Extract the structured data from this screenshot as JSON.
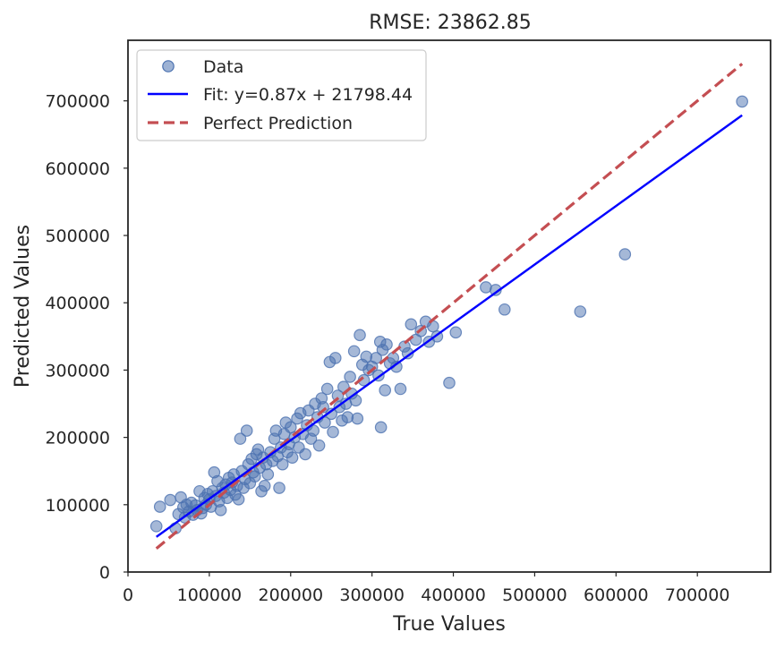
{
  "chart_data": {
    "type": "scatter",
    "title": "RMSE: 23862.85",
    "xlabel": "True Values",
    "ylabel": "Predicted Values",
    "xlim": [
      0,
      790000
    ],
    "ylim": [
      0,
      790000
    ],
    "x_ticks": [
      0,
      100000,
      200000,
      300000,
      400000,
      500000,
      600000,
      700000
    ],
    "y_ticks": [
      0,
      100000,
      200000,
      300000,
      400000,
      500000,
      600000,
      700000
    ],
    "x_tick_labels": [
      "0",
      "100000",
      "200000",
      "300000",
      "400000",
      "500000",
      "600000",
      "700000"
    ],
    "y_tick_labels": [
      "0",
      "100000",
      "200000",
      "300000",
      "400000",
      "500000",
      "600000",
      "700000"
    ],
    "grid": false,
    "legend_position": "top-left",
    "legend": [
      {
        "label": "Data",
        "kind": "marker",
        "color": "#4c72b0"
      },
      {
        "label": "Fit: y=0.87x + 21798.44",
        "kind": "line",
        "color": "#0000ff"
      },
      {
        "label": "Perfect Prediction",
        "kind": "dashed-line",
        "color": "#c44e52"
      }
    ],
    "fit": {
      "slope": 0.87,
      "intercept": 21798.44,
      "x_range": [
        34900,
        755000
      ],
      "color": "#0000ff"
    },
    "perfect_prediction": {
      "x_range": [
        34900,
        755000
      ],
      "color": "#c44e52"
    },
    "series": [
      {
        "name": "Data",
        "color": "#4c72b0",
        "points": [
          [
            34900,
            68000
          ],
          [
            39300,
            97000
          ],
          [
            52000,
            107000
          ],
          [
            58500,
            65000
          ],
          [
            62000,
            86000
          ],
          [
            65000,
            111000
          ],
          [
            68000,
            96000
          ],
          [
            70000,
            81000
          ],
          [
            72000,
            100000
          ],
          [
            75000,
            90000
          ],
          [
            78000,
            103000
          ],
          [
            80000,
            85000
          ],
          [
            83000,
            99000
          ],
          [
            85000,
            92000
          ],
          [
            88000,
            120000
          ],
          [
            90000,
            87000
          ],
          [
            92000,
            95000
          ],
          [
            94000,
            110000
          ],
          [
            96000,
            100000
          ],
          [
            98000,
            116000
          ],
          [
            100000,
            108000
          ],
          [
            102000,
            97000
          ],
          [
            104000,
            120000
          ],
          [
            106000,
            148000
          ],
          [
            108000,
            113000
          ],
          [
            110000,
            135000
          ],
          [
            112000,
            105000
          ],
          [
            114000,
            92000
          ],
          [
            116000,
            125000
          ],
          [
            118000,
            118000
          ],
          [
            120000,
            130000
          ],
          [
            122000,
            110000
          ],
          [
            124000,
            140000
          ],
          [
            126000,
            122000
          ],
          [
            128000,
            133000
          ],
          [
            130000,
            145000
          ],
          [
            132000,
            115000
          ],
          [
            134000,
            128000
          ],
          [
            136000,
            108000
          ],
          [
            138000,
            198000
          ],
          [
            140000,
            150000
          ],
          [
            142000,
            125000
          ],
          [
            144000,
            138000
          ],
          [
            146000,
            210000
          ],
          [
            148000,
            160000
          ],
          [
            150000,
            132000
          ],
          [
            152000,
            168000
          ],
          [
            154000,
            148000
          ],
          [
            156000,
            142000
          ],
          [
            158000,
            175000
          ],
          [
            160000,
            182000
          ],
          [
            162000,
            155000
          ],
          [
            164000,
            120000
          ],
          [
            166000,
            170000
          ],
          [
            168000,
            128000
          ],
          [
            170000,
            160000
          ],
          [
            172000,
            145000
          ],
          [
            175000,
            178000
          ],
          [
            178000,
            165000
          ],
          [
            180000,
            198000
          ],
          [
            182000,
            210000
          ],
          [
            184000,
            172000
          ],
          [
            186000,
            125000
          ],
          [
            188000,
            185000
          ],
          [
            190000,
            160000
          ],
          [
            192000,
            205000
          ],
          [
            194000,
            222000
          ],
          [
            196000,
            178000
          ],
          [
            198000,
            190000
          ],
          [
            200000,
            215000
          ],
          [
            202000,
            170000
          ],
          [
            205000,
            200000
          ],
          [
            208000,
            228000
          ],
          [
            210000,
            185000
          ],
          [
            212000,
            236000
          ],
          [
            215000,
            205000
          ],
          [
            218000,
            175000
          ],
          [
            220000,
            218000
          ],
          [
            222000,
            240000
          ],
          [
            225000,
            198000
          ],
          [
            228000,
            210000
          ],
          [
            230000,
            250000
          ],
          [
            233000,
            230000
          ],
          [
            235000,
            188000
          ],
          [
            238000,
            258000
          ],
          [
            240000,
            245000
          ],
          [
            242000,
            222000
          ],
          [
            245000,
            272000
          ],
          [
            248000,
            312000
          ],
          [
            250000,
            235000
          ],
          [
            252000,
            208000
          ],
          [
            255000,
            318000
          ],
          [
            258000,
            262000
          ],
          [
            260000,
            245000
          ],
          [
            263000,
            225000
          ],
          [
            265000,
            275000
          ],
          [
            268000,
            250000
          ],
          [
            270000,
            230000
          ],
          [
            273000,
            290000
          ],
          [
            275000,
            265000
          ],
          [
            278000,
            328000
          ],
          [
            280000,
            255000
          ],
          [
            282000,
            228000
          ],
          [
            285000,
            352000
          ],
          [
            288000,
            308000
          ],
          [
            290000,
            285000
          ],
          [
            293000,
            320000
          ],
          [
            296000,
            300000
          ],
          [
            300000,
            305000
          ],
          [
            305000,
            318000
          ],
          [
            308000,
            292000
          ],
          [
            310000,
            342000
          ],
          [
            311000,
            215000
          ],
          [
            313000,
            330000
          ],
          [
            316000,
            270000
          ],
          [
            318000,
            338000
          ],
          [
            322000,
            310000
          ],
          [
            326000,
            318000
          ],
          [
            330000,
            305000
          ],
          [
            335000,
            272000
          ],
          [
            340000,
            335000
          ],
          [
            344000,
            325000
          ],
          [
            348000,
            368000
          ],
          [
            354000,
            345000
          ],
          [
            360000,
            358000
          ],
          [
            366000,
            372000
          ],
          [
            370000,
            342000
          ],
          [
            375000,
            365000
          ],
          [
            380000,
            350000
          ],
          [
            395000,
            281000
          ],
          [
            403000,
            356000
          ],
          [
            440000,
            423000
          ],
          [
            452000,
            419000
          ],
          [
            463000,
            390000
          ],
          [
            556000,
            387000
          ],
          [
            611000,
            472000
          ],
          [
            755000,
            699000
          ]
        ]
      }
    ]
  }
}
